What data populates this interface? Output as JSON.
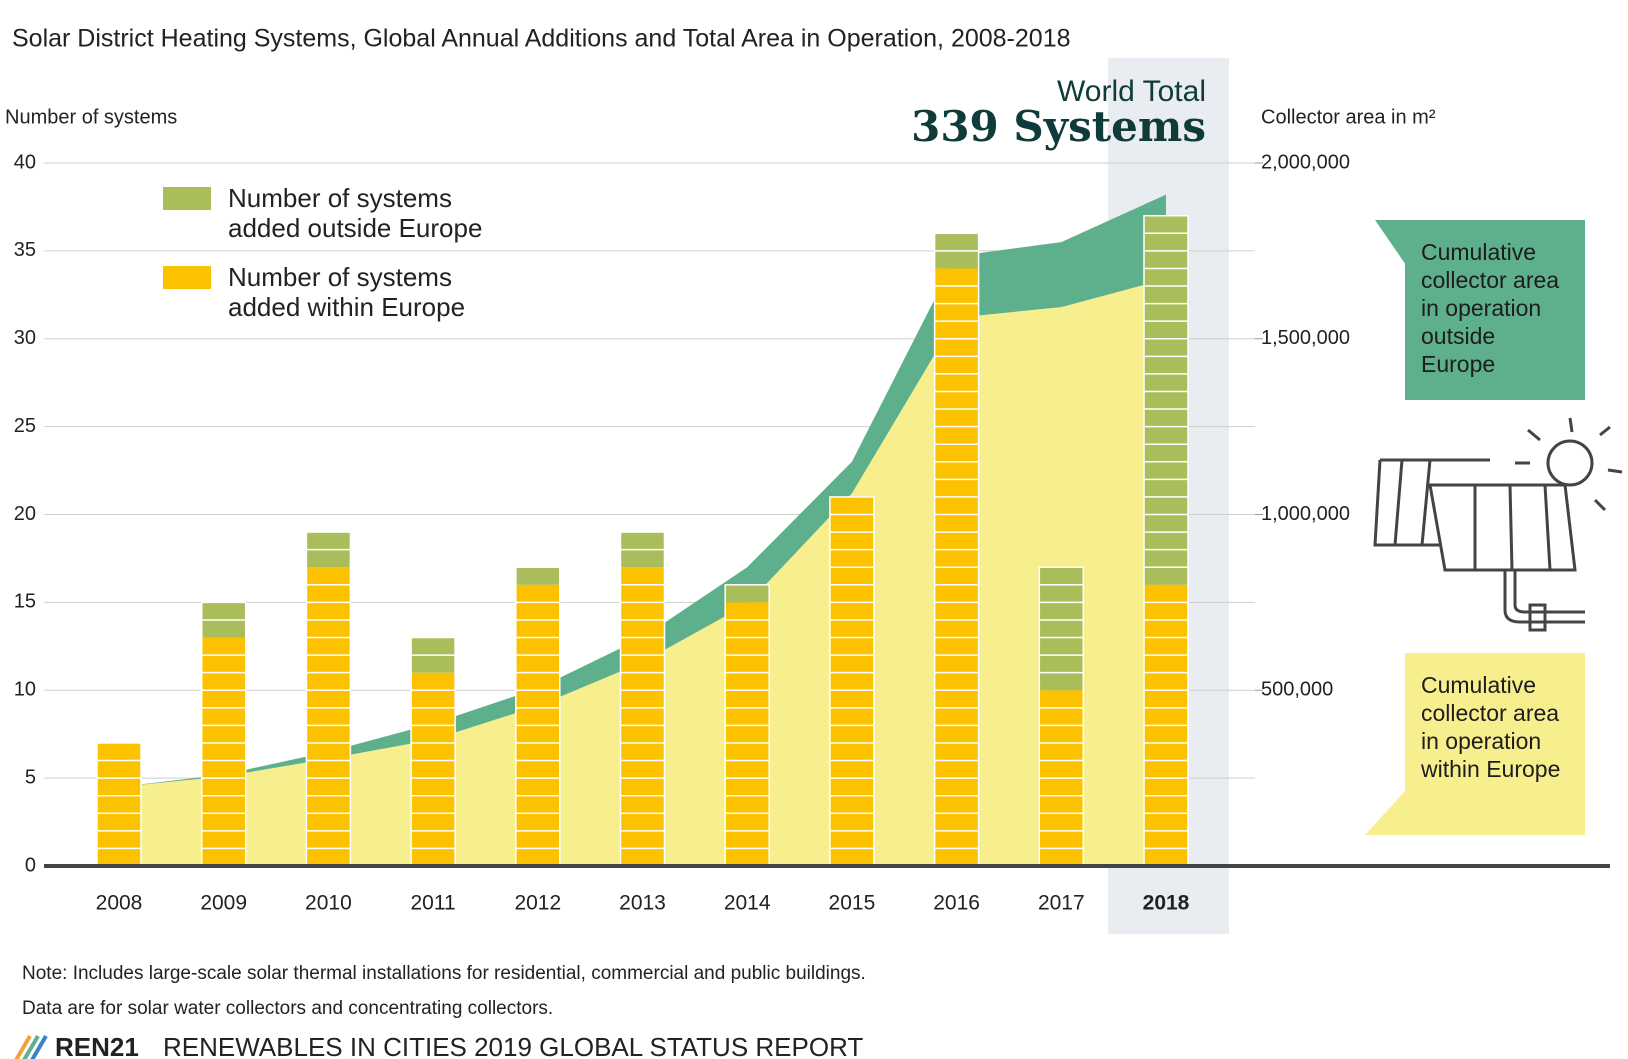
{
  "chart_data": {
    "type": "bar",
    "title": "Solar District Heating Systems, Global Annual Additions and Total Area in Operation, 2008-2018",
    "y_label": "Number of systems",
    "y2_label": "Collector area in m²",
    "categories": [
      "2008",
      "2009",
      "2010",
      "2011",
      "2012",
      "2013",
      "2014",
      "2015",
      "2016",
      "2017",
      "2018"
    ],
    "highlight_category": "2018",
    "series": [
      {
        "name": "Number of systems added within Europe",
        "type": "bar",
        "color": "#fcc200",
        "values": [
          7,
          13,
          17,
          11,
          16,
          17,
          15,
          21,
          34,
          10,
          16
        ]
      },
      {
        "name": "Number of systems added outside Europe",
        "type": "bar",
        "color": "#a9be5a",
        "values": [
          0,
          2,
          2,
          2,
          1,
          2,
          1,
          0,
          2,
          7,
          21
        ]
      },
      {
        "name": "Cumulative collector area in operation within Europe",
        "type": "area",
        "axis": "y2",
        "color": "#f7ee8e",
        "values": [
          225000,
          255000,
          305000,
          360000,
          455000,
          580000,
          745000,
          1060000,
          1560000,
          1590000,
          1670000
        ]
      },
      {
        "name": "Cumulative collector area in operation outside Europe",
        "type": "area",
        "axis": "y2",
        "color": "#5eaf8c",
        "values": [
          0,
          5000,
          20000,
          45000,
          50000,
          70000,
          105000,
          90000,
          175000,
          185000,
          240000
        ]
      }
    ],
    "ylim": [
      0,
      40
    ],
    "yticks": [
      0,
      5,
      10,
      15,
      20,
      25,
      30,
      35,
      40
    ],
    "y2lim": [
      0,
      2000000
    ],
    "y2ticks": [
      {
        "value": 500000,
        "label": "500,000"
      },
      {
        "value": 1000000,
        "label": "1,000,000"
      },
      {
        "value": 1500000,
        "label": "1,500,000"
      },
      {
        "value": 2000000,
        "label": "2,000,000"
      }
    ],
    "grid": true,
    "annotations": [
      "World Total",
      "339 Systems"
    ],
    "notes": [
      "Note: Includes large-scale solar thermal installations for residential, commercial  and public buildings.",
      "Data are for solar water collectors and concentrating collectors."
    ],
    "source_org": "REN21",
    "source": "RENEWABLES IN CITIES 2019 GLOBAL STATUS REPORT"
  }
}
